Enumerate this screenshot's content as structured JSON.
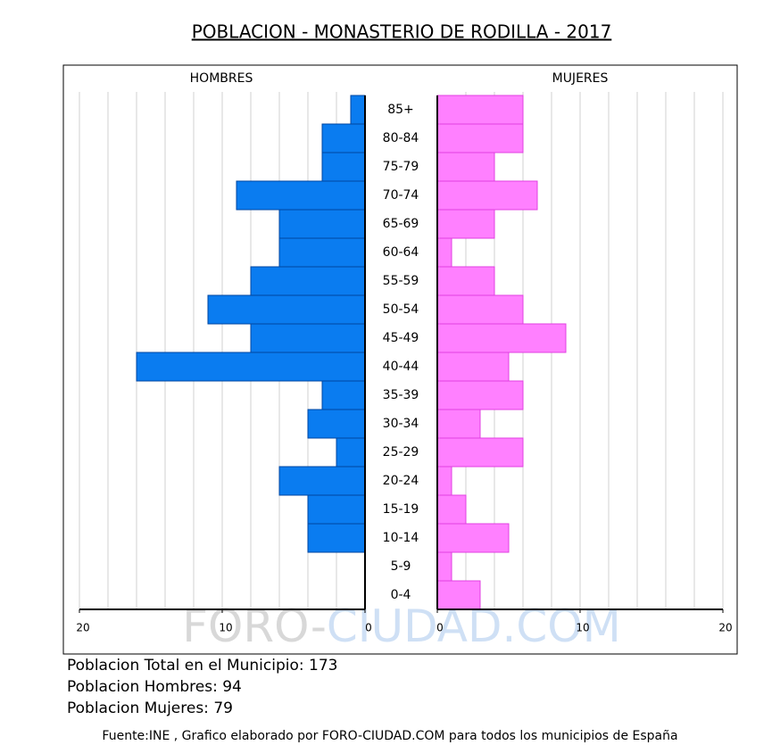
{
  "chart_data": {
    "type": "pyramid",
    "title": "POBLACION - MONASTERIO DE RODILLA - 2017",
    "categories": [
      "85+",
      "80-84",
      "75-79",
      "70-74",
      "65-69",
      "60-64",
      "55-59",
      "50-54",
      "45-49",
      "40-44",
      "35-39",
      "30-34",
      "25-29",
      "20-24",
      "15-19",
      "10-14",
      "5-9",
      "0-4"
    ],
    "series": [
      {
        "name": "HOMBRES",
        "color": "#0a7cf0",
        "values": [
          1,
          3,
          3,
          9,
          6,
          6,
          8,
          11,
          8,
          16,
          3,
          4,
          2,
          6,
          4,
          4,
          0,
          0
        ]
      },
      {
        "name": "MUJERES",
        "color": "#ff80ff",
        "values": [
          6,
          6,
          4,
          7,
          4,
          1,
          4,
          6,
          9,
          5,
          6,
          3,
          6,
          1,
          2,
          5,
          1,
          3
        ]
      }
    ],
    "xlim": [
      0,
      20
    ],
    "xticks": [
      0,
      10,
      20
    ],
    "xgrid": [
      2,
      4,
      6,
      8,
      10,
      12,
      14,
      16,
      18,
      20
    ],
    "watermark": [
      "FORO-",
      "CIUDAD.COM"
    ],
    "stats": [
      "Poblacion Total en el Municipio: 173",
      "Poblacion Hombres: 94",
      "Poblacion Mujeres: 79"
    ],
    "source": "Fuente:INE , Grafico elaborado por FORO-CIUDAD.COM para todos los municipios de España"
  }
}
